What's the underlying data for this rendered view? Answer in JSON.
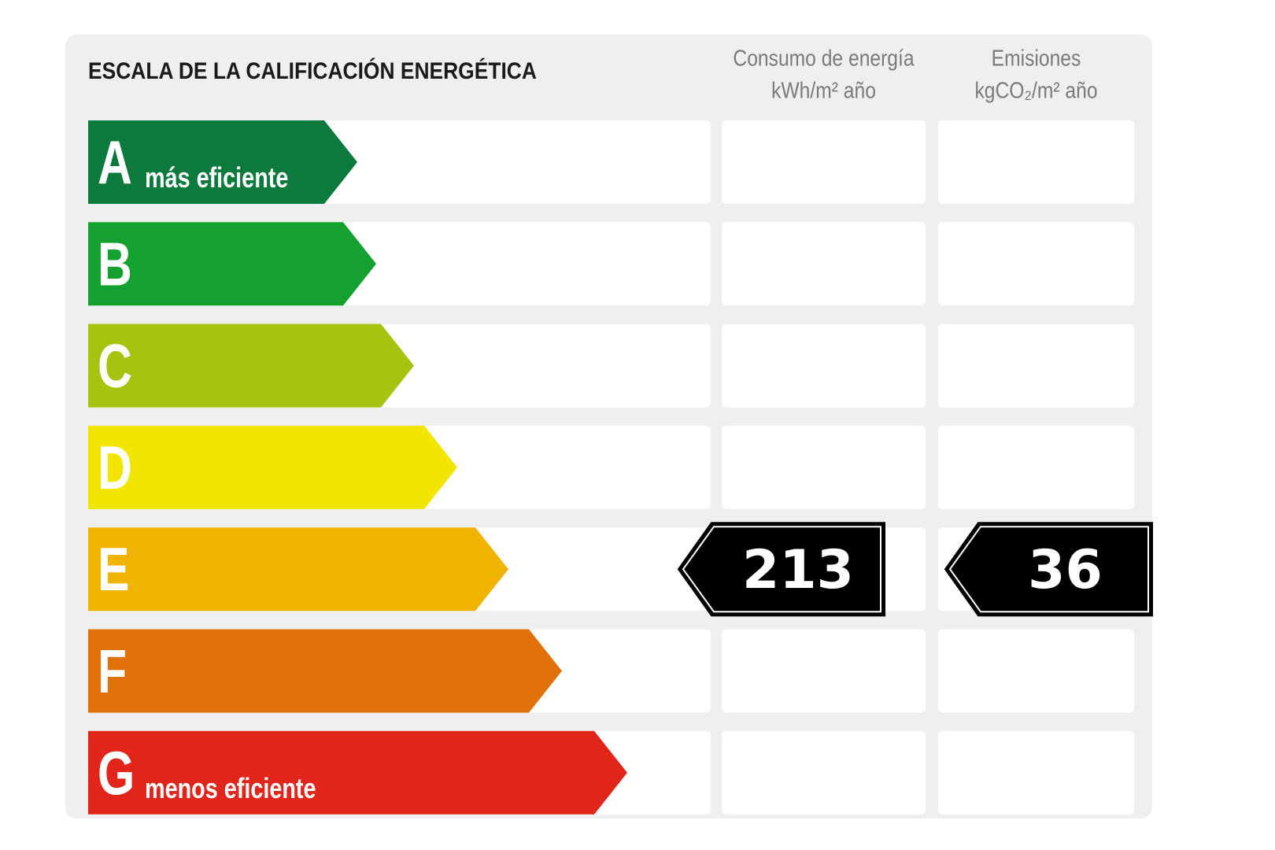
{
  "header": {
    "title": "ESCALA DE LA CALIFICACIÓN ENERGÉTICA",
    "columns": [
      {
        "title": "Consumo de energía",
        "unit": "kWh/m² año"
      },
      {
        "title": "Emisiones",
        "unit": "kgCO₂/m² año"
      }
    ]
  },
  "rows": [
    {
      "letter": "A",
      "label": "más eficiente",
      "color": "#0d7a3d"
    },
    {
      "letter": "B",
      "color": "#15a12f"
    },
    {
      "letter": "C",
      "color": "#a7c30f"
    },
    {
      "letter": "D",
      "color": "#f2e500"
    },
    {
      "letter": "E",
      "color": "#f0b400",
      "energy": 213,
      "emissions": 36
    },
    {
      "letter": "F",
      "color": "#e07108"
    },
    {
      "letter": "G",
      "label": "menos eficiente",
      "color": "#e1251b"
    }
  ]
}
